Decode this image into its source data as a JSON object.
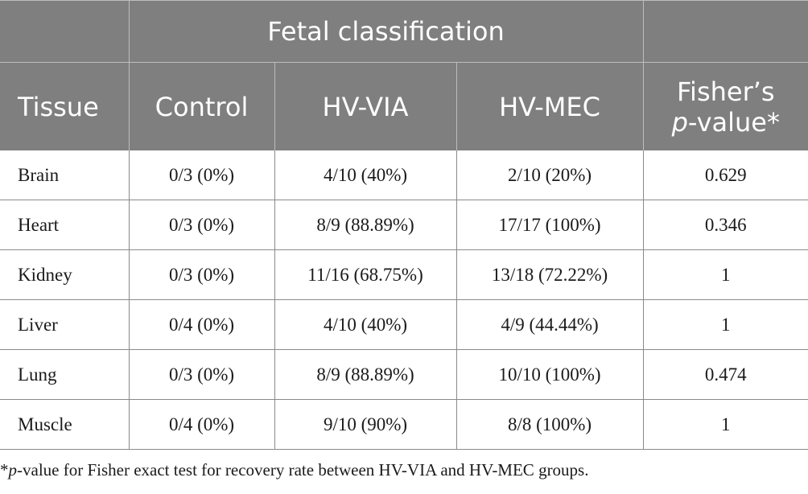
{
  "table": {
    "group_header": "Fetal classification",
    "columns": {
      "tissue": "Tissue",
      "control": "Control",
      "hv_via": "HV-VIA",
      "hv_mec": "HV-MEC",
      "fisher_line1": "Fisher’s",
      "fisher_p": "p",
      "fisher_rest": "-value*"
    },
    "rows": [
      {
        "tissue": "Brain",
        "control": "0/3 (0%)",
        "hv_via": "4/10 (40%)",
        "hv_mec": "2/10 (20%)",
        "p": "0.629"
      },
      {
        "tissue": "Heart",
        "control": "0/3 (0%)",
        "hv_via": "8/9 (88.89%)",
        "hv_mec": "17/17 (100%)",
        "p": "0.346"
      },
      {
        "tissue": "Kidney",
        "control": "0/3 (0%)",
        "hv_via": "11/16 (68.75%)",
        "hv_mec": "13/18 (72.22%)",
        "p": "1"
      },
      {
        "tissue": "Liver",
        "control": "0/4 (0%)",
        "hv_via": "4/10 (40%)",
        "hv_mec": "4/9 (44.44%)",
        "p": "1"
      },
      {
        "tissue": "Lung",
        "control": "0/3 (0%)",
        "hv_via": "8/9 (88.89%)",
        "hv_mec": "10/10 (100%)",
        "p": "0.474"
      },
      {
        "tissue": "Muscle",
        "control": "0/4 (0%)",
        "hv_via": "9/10 (90%)",
        "hv_mec": "8/8 (100%)",
        "p": "1"
      }
    ]
  },
  "footnote": {
    "star": "*",
    "p": "p",
    "text": "-value for Fisher exact test for recovery rate between HV-VIA and HV-MEC groups."
  }
}
